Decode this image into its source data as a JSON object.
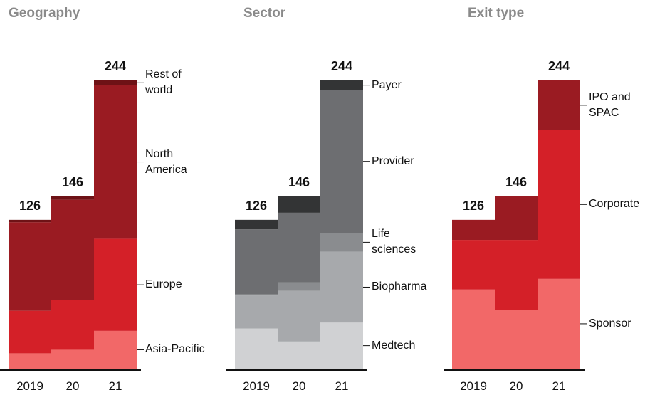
{
  "chart_data": [
    {
      "type": "bar",
      "stacked": true,
      "title": "Geography",
      "categories": [
        "2019",
        "20",
        "21"
      ],
      "totals": [
        126,
        146,
        244
      ],
      "series": [
        {
          "name": "Asia-Pacific",
          "color": "#f26868",
          "values": [
            13,
            16,
            32
          ]
        },
        {
          "name": "Europe",
          "color": "#d42028",
          "values": [
            36,
            42,
            78
          ]
        },
        {
          "name": "North America",
          "color": "#9a1b22",
          "values": [
            75,
            85,
            130
          ]
        },
        {
          "name": "Rest of world",
          "color": "#6e1216",
          "values": [
            2,
            3,
            4
          ]
        }
      ]
    },
    {
      "type": "bar",
      "stacked": true,
      "title": "Sector",
      "categories": [
        "2019",
        "20",
        "21"
      ],
      "totals": [
        126,
        146,
        244
      ],
      "series": [
        {
          "name": "Medtech",
          "color": "#d0d1d3",
          "values": [
            34,
            23,
            39
          ]
        },
        {
          "name": "Biopharma",
          "color": "#a7a9ac",
          "values": [
            28,
            43,
            60
          ]
        },
        {
          "name": "Life sciences",
          "color": "#8a8c8f",
          "values": [
            1,
            7,
            16
          ]
        },
        {
          "name": "Provider",
          "color": "#6d6e71",
          "values": [
            55,
            59,
            121
          ]
        },
        {
          "name": "Payer",
          "color": "#333435",
          "values": [
            8,
            14,
            8
          ]
        }
      ]
    },
    {
      "type": "bar",
      "stacked": true,
      "title": "Exit type",
      "categories": [
        "2019",
        "20",
        "21"
      ],
      "totals": [
        126,
        146,
        244
      ],
      "series": [
        {
          "name": "Sponsor",
          "color": "#f26868",
          "values": [
            67,
            50,
            76
          ]
        },
        {
          "name": "Corporate",
          "color": "#d42028",
          "values": [
            42,
            59,
            126
          ]
        },
        {
          "name": "IPO and SPAC",
          "color": "#9a1b22",
          "values": [
            17,
            37,
            42
          ]
        }
      ]
    }
  ]
}
